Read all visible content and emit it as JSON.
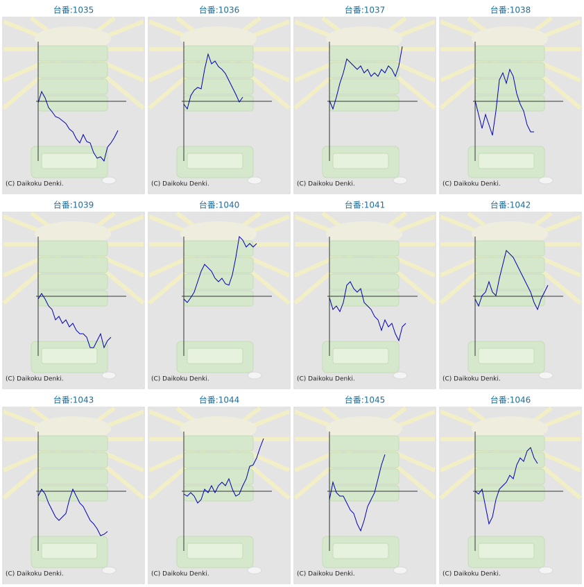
{
  "chart_data": [
    {
      "type": "line",
      "title": "台番:1035",
      "credit": "(C) Daikoku Denki.",
      "color": "#0000b0",
      "xlim": [
        0,
        25
      ],
      "ylim": [
        -86,
        86
      ],
      "values": [
        -2,
        14,
        5,
        -9,
        -15,
        -22,
        -24,
        -28,
        -32,
        -40,
        -44,
        -54,
        -60,
        -48,
        -58,
        -60,
        -74,
        -82,
        -80,
        -86,
        -66,
        -60,
        -52,
        -42
      ]
    },
    {
      "type": "line",
      "title": "台番:1036",
      "credit": "(C) Daikoku Denki.",
      "color": "#0000b0",
      "xlim": [
        0,
        25
      ],
      "ylim": [
        -86,
        86
      ],
      "values": [
        -4,
        -11,
        8,
        16,
        20,
        18,
        46,
        68,
        54,
        58,
        50,
        46,
        40,
        30,
        20,
        10,
        -1,
        6
      ]
    },
    {
      "type": "line",
      "title": "台番:1037",
      "credit": "(C) Daikoku Denki.",
      "color": "#0000b0",
      "xlim": [
        0,
        25
      ],
      "ylim": [
        -86,
        86
      ],
      "values": [
        1,
        -11,
        6,
        26,
        41,
        61,
        56,
        51,
        46,
        51,
        41,
        46,
        36,
        41,
        36,
        46,
        41,
        51,
        46,
        36,
        51,
        79
      ]
    },
    {
      "type": "line",
      "title": "台番:1038",
      "credit": "(C) Daikoku Denki.",
      "color": "#0000b0",
      "xlim": [
        0,
        25
      ],
      "ylim": [
        -86,
        86
      ],
      "values": [
        1,
        -19,
        -39,
        -19,
        -34,
        -49,
        -14,
        31,
        41,
        26,
        46,
        36,
        11,
        -4,
        -14,
        -34,
        -44,
        -44
      ]
    },
    {
      "type": "line",
      "title": "台番:1039",
      "credit": "(C) Daikoku Denki.",
      "color": "#0000b0",
      "xlim": [
        0,
        25
      ],
      "ylim": [
        -86,
        86
      ],
      "values": [
        -4,
        4,
        -4,
        -14,
        -19,
        -34,
        -29,
        -39,
        -34,
        -44,
        -39,
        -49,
        -54,
        -54,
        -59,
        -74,
        -74,
        -64,
        -54,
        -74,
        -64,
        -59
      ]
    },
    {
      "type": "line",
      "title": "台番:1040",
      "credit": "(C) Daikoku Denki.",
      "color": "#0000b0",
      "xlim": [
        0,
        25
      ],
      "ylim": [
        -86,
        86
      ],
      "values": [
        -4,
        -9,
        -2,
        6,
        21,
        36,
        46,
        41,
        36,
        26,
        21,
        26,
        18,
        16,
        31,
        56,
        86,
        81,
        71,
        76,
        71,
        76
      ]
    },
    {
      "type": "line",
      "title": "台番:1041",
      "credit": "(C) Daikoku Denki.",
      "color": "#0000b0",
      "xlim": [
        0,
        25
      ],
      "ylim": [
        -86,
        86
      ],
      "values": [
        -2,
        -19,
        -14,
        -22,
        -9,
        16,
        21,
        11,
        6,
        11,
        -9,
        -14,
        -19,
        -29,
        -34,
        -49,
        -34,
        -44,
        -39,
        -54,
        -64,
        -44,
        -39
      ]
    },
    {
      "type": "line",
      "title": "台番:1042",
      "credit": "(C) Daikoku Denki.",
      "color": "#0000b0",
      "xlim": [
        0,
        25
      ],
      "ylim": [
        -86,
        86
      ],
      "values": [
        -4,
        -14,
        1,
        6,
        21,
        6,
        1,
        26,
        46,
        66,
        61,
        56,
        46,
        36,
        26,
        16,
        6,
        -9,
        -19,
        -4,
        6,
        16
      ]
    },
    {
      "type": "line",
      "title": "台番:1043",
      "credit": "(C) Daikoku Denki.",
      "color": "#0000b0",
      "xlim": [
        0,
        25
      ],
      "ylim": [
        -86,
        86
      ],
      "values": [
        -7,
        3,
        -4,
        -17,
        -27,
        -37,
        -42,
        -37,
        -32,
        -12,
        3,
        -7,
        -17,
        -22,
        -32,
        -42,
        -47,
        -54,
        -64,
        -62,
        -58
      ]
    },
    {
      "type": "line",
      "title": "台番:1044",
      "credit": "(C) Daikoku Denki.",
      "color": "#0000b0",
      "xlim": [
        0,
        25
      ],
      "ylim": [
        -86,
        86
      ],
      "values": [
        -4,
        -7,
        -2,
        -7,
        -17,
        -12,
        3,
        -2,
        8,
        -2,
        8,
        13,
        8,
        18,
        3,
        -7,
        -4,
        8,
        18,
        36,
        38,
        48,
        63,
        76
      ]
    },
    {
      "type": "line",
      "title": "台番:1045",
      "credit": "(C) Daikoku Denki.",
      "color": "#0000b0",
      "xlim": [
        0,
        25
      ],
      "ylim": [
        -86,
        86
      ],
      "values": [
        -12,
        13,
        -2,
        -7,
        -7,
        -17,
        -27,
        -32,
        -47,
        -57,
        -42,
        -22,
        -12,
        -2,
        18,
        38,
        53
      ]
    },
    {
      "type": "line",
      "title": "台番:1046",
      "credit": "(C) Daikoku Denki.",
      "color": "#0000b0",
      "xlim": [
        0,
        25
      ],
      "ylim": [
        -86,
        86
      ],
      "values": [
        0,
        -4,
        3,
        -22,
        -47,
        -37,
        -12,
        3,
        8,
        13,
        23,
        18,
        38,
        48,
        43,
        58,
        63,
        48,
        40
      ]
    }
  ]
}
